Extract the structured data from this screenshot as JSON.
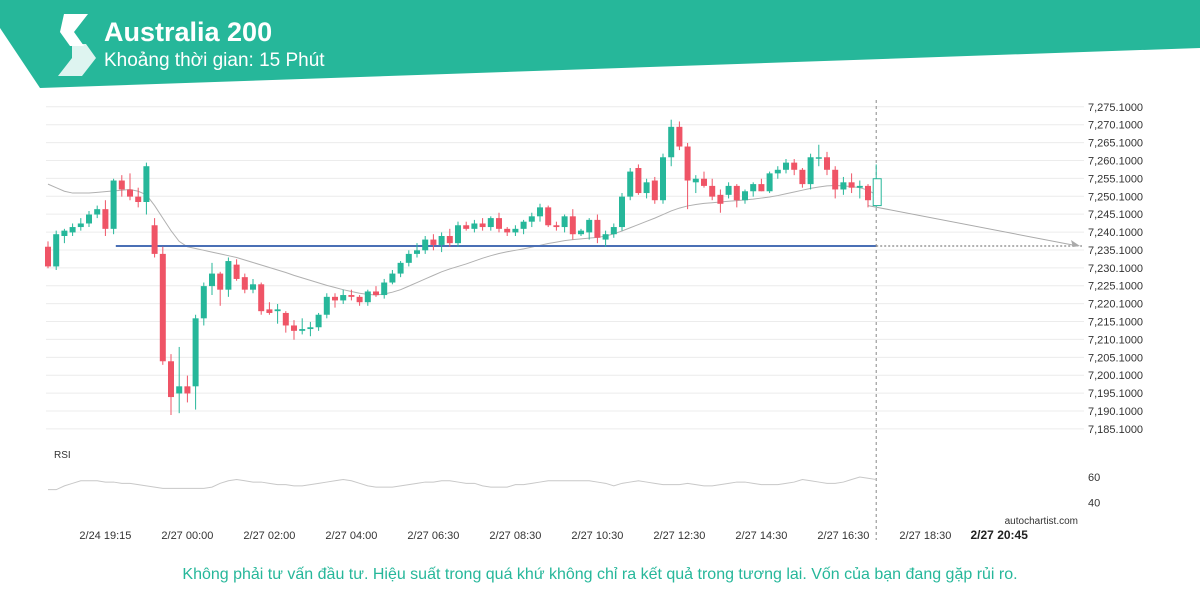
{
  "header": {
    "title": "Australia 200",
    "subtitle": "Khoảng thời gian: 15 Phút",
    "color": "#26b79a"
  },
  "footer": {
    "disclaimer": "Không phải tư vấn đầu tư. Hiệu suất trong quá khứ không chỉ ra kết quả trong tương lai. Vốn của bạn đang gặp rủi ro.",
    "watermark": "autochartist.com"
  },
  "colors": {
    "up": "#26b79a",
    "down": "#ef5466",
    "level_line": "#4a6fb5",
    "ma_line": "#b0b0b0",
    "rsi_line": "#c8c8c8",
    "grid": "#ececec"
  },
  "chart_data": {
    "type": "candlestick",
    "ylim": [
      7182,
      7277
    ],
    "y_ticks": [
      "7,185.1000",
      "7,190.1000",
      "7,195.1000",
      "7,200.1000",
      "7,205.1000",
      "7,210.1000",
      "7,215.1000",
      "7,220.1000",
      "7,225.1000",
      "7,230.1000",
      "7,235.1000",
      "7,240.1000",
      "7,245.1000",
      "7,250.1000",
      "7,255.1000",
      "7,260.1000",
      "7,265.1000",
      "7,270.1000",
      "7,275.1000"
    ],
    "x_ticks": [
      {
        "label": "2/24 19:15",
        "i": 7
      },
      {
        "label": "2/27 00:00",
        "i": 17
      },
      {
        "label": "2/27 02:00",
        "i": 27
      },
      {
        "label": "2/27 04:00",
        "i": 37
      },
      {
        "label": "2/27 06:30",
        "i": 47
      },
      {
        "label": "2/27 08:30",
        "i": 57
      },
      {
        "label": "2/27 10:30",
        "i": 67
      },
      {
        "label": "2/27 12:30",
        "i": 77
      },
      {
        "label": "2/27 14:30",
        "i": 87
      },
      {
        "label": "2/27 16:30",
        "i": 97
      },
      {
        "label": "2/27 18:30",
        "i": 107
      },
      {
        "label": "2/27 20:45",
        "i": 116,
        "bold": true
      }
    ],
    "candles": [
      [
        7236.0,
        7237.5,
        7230.0,
        7230.5
      ],
      [
        7230.5,
        7240.5,
        7229.5,
        7239.5
      ],
      [
        7239.0,
        7241.0,
        7237.0,
        7240.5
      ],
      [
        7240.0,
        7242.5,
        7239.0,
        7241.5
      ],
      [
        7241.5,
        7244.0,
        7240.5,
        7242.5
      ],
      [
        7242.5,
        7246.0,
        7241.5,
        7245.0
      ],
      [
        7245.0,
        7247.5,
        7244.0,
        7246.5
      ],
      [
        7246.5,
        7249.0,
        7239.0,
        7241.0
      ],
      [
        7241.0,
        7255.0,
        7239.5,
        7254.5
      ],
      [
        7254.5,
        7256.0,
        7250.0,
        7252.0
      ],
      [
        7252.0,
        7256.5,
        7249.0,
        7250.0
      ],
      [
        7250.0,
        7252.5,
        7247.0,
        7248.5
      ],
      [
        7248.5,
        7259.5,
        7245.0,
        7258.5
      ],
      [
        7242.0,
        7244.0,
        7233.0,
        7234.0
      ],
      [
        7234.0,
        7236.0,
        7203.0,
        7204.0
      ],
      [
        7204.0,
        7206.0,
        7189.0,
        7194.0
      ],
      [
        7195.0,
        7208.0,
        7189.5,
        7197.0
      ],
      [
        7197.0,
        7200.0,
        7192.5,
        7195.0
      ],
      [
        7197.0,
        7217.0,
        7190.5,
        7216.0
      ],
      [
        7216.0,
        7226.0,
        7214.0,
        7225.0
      ],
      [
        7225.0,
        7231.5,
        7222.5,
        7228.5
      ],
      [
        7228.5,
        7229.0,
        7219.5,
        7224.0
      ],
      [
        7224.0,
        7233.0,
        7222.0,
        7232.0
      ],
      [
        7231.0,
        7232.5,
        7226.5,
        7227.0
      ],
      [
        7227.5,
        7228.5,
        7223.0,
        7224.0
      ],
      [
        7224.0,
        7227.0,
        7223.0,
        7225.5
      ],
      [
        7225.5,
        7226.0,
        7217.0,
        7218.0
      ],
      [
        7218.5,
        7220.5,
        7217.0,
        7217.5
      ],
      [
        7218.0,
        7220.0,
        7214.5,
        7218.5
      ],
      [
        7217.5,
        7218.0,
        7212.0,
        7214.0
      ],
      [
        7214.0,
        7215.5,
        7210.0,
        7212.5
      ],
      [
        7212.5,
        7216.0,
        7211.5,
        7213.0
      ],
      [
        7213.0,
        7215.0,
        7211.0,
        7213.5
      ],
      [
        7213.5,
        7217.5,
        7212.5,
        7217.0
      ],
      [
        7217.0,
        7223.0,
        7216.0,
        7222.0
      ],
      [
        7222.0,
        7223.0,
        7219.0,
        7221.0
      ],
      [
        7221.0,
        7224.0,
        7220.0,
        7222.5
      ],
      [
        7222.5,
        7224.0,
        7221.0,
        7222.0
      ],
      [
        7222.0,
        7222.5,
        7219.5,
        7220.5
      ],
      [
        7220.5,
        7224.0,
        7219.5,
        7223.5
      ],
      [
        7223.5,
        7225.0,
        7222.0,
        7222.5
      ],
      [
        7222.5,
        7227.0,
        7221.5,
        7226.0
      ],
      [
        7226.0,
        7229.5,
        7225.5,
        7228.5
      ],
      [
        7228.5,
        7232.0,
        7227.5,
        7231.5
      ],
      [
        7231.5,
        7235.0,
        7230.5,
        7234.0
      ],
      [
        7234.0,
        7237.0,
        7233.0,
        7235.0
      ],
      [
        7235.0,
        7239.0,
        7234.0,
        7238.0
      ],
      [
        7238.0,
        7239.5,
        7235.0,
        7236.5
      ],
      [
        7236.5,
        7240.0,
        7234.5,
        7239.0
      ],
      [
        7239.0,
        7241.0,
        7236.0,
        7237.0
      ],
      [
        7237.0,
        7243.0,
        7236.0,
        7242.0
      ],
      [
        7242.0,
        7243.0,
        7240.5,
        7241.0
      ],
      [
        7241.0,
        7243.5,
        7240.0,
        7242.5
      ],
      [
        7242.5,
        7244.0,
        7240.5,
        7241.5
      ],
      [
        7241.5,
        7244.5,
        7240.5,
        7244.0
      ],
      [
        7244.0,
        7245.5,
        7240.0,
        7241.0
      ],
      [
        7241.0,
        7241.5,
        7239.0,
        7240.0
      ],
      [
        7240.0,
        7242.0,
        7239.0,
        7241.0
      ],
      [
        7241.0,
        7243.5,
        7239.5,
        7243.0
      ],
      [
        7243.0,
        7245.5,
        7241.5,
        7244.5
      ],
      [
        7244.5,
        7248.0,
        7243.0,
        7247.0
      ],
      [
        7247.0,
        7247.5,
        7241.5,
        7242.0
      ],
      [
        7242.0,
        7243.0,
        7240.5,
        7241.5
      ],
      [
        7241.5,
        7245.0,
        7240.0,
        7244.5
      ],
      [
        7244.5,
        7246.5,
        7238.0,
        7239.5
      ],
      [
        7239.5,
        7241.0,
        7239.0,
        7240.5
      ],
      [
        7240.0,
        7244.0,
        7238.0,
        7243.5
      ],
      [
        7243.5,
        7245.0,
        7237.0,
        7238.5
      ],
      [
        7238.0,
        7240.5,
        7236.0,
        7239.5
      ],
      [
        7239.5,
        7242.5,
        7238.5,
        7241.5
      ],
      [
        7241.5,
        7251.0,
        7240.5,
        7250.0
      ],
      [
        7250.0,
        7258.0,
        7249.0,
        7257.0
      ],
      [
        7258.0,
        7259.0,
        7250.5,
        7251.0
      ],
      [
        7251.0,
        7255.0,
        7249.5,
        7254.0
      ],
      [
        7254.5,
        7255.5,
        7248.0,
        7249.0
      ],
      [
        7249.0,
        7262.0,
        7248.0,
        7261.0
      ],
      [
        7261.0,
        7271.5,
        7258.5,
        7269.5
      ],
      [
        7269.5,
        7271.0,
        7263.0,
        7264.0
      ],
      [
        7264.0,
        7265.0,
        7246.5,
        7254.5
      ],
      [
        7254.0,
        7256.0,
        7251.0,
        7255.0
      ],
      [
        7255.0,
        7257.0,
        7252.5,
        7253.0
      ],
      [
        7253.0,
        7255.0,
        7249.0,
        7250.0
      ],
      [
        7250.5,
        7252.0,
        7245.5,
        7248.0
      ],
      [
        7250.5,
        7254.0,
        7249.5,
        7253.0
      ],
      [
        7253.0,
        7253.5,
        7247.0,
        7249.0
      ],
      [
        7249.0,
        7252.0,
        7248.0,
        7251.5
      ],
      [
        7251.5,
        7254.0,
        7250.0,
        7253.5
      ],
      [
        7253.5,
        7255.0,
        7251.5,
        7251.5
      ],
      [
        7251.5,
        7257.0,
        7251.0,
        7256.5
      ],
      [
        7256.5,
        7258.5,
        7255.0,
        7257.5
      ],
      [
        7257.5,
        7260.5,
        7256.5,
        7259.5
      ],
      [
        7259.5,
        7260.5,
        7256.0,
        7257.5
      ],
      [
        7257.5,
        7258.0,
        7252.5,
        7253.5
      ],
      [
        7253.5,
        7262.0,
        7252.0,
        7261.0
      ],
      [
        7261.0,
        7264.5,
        7258.5,
        7261.0
      ],
      [
        7261.0,
        7262.5,
        7256.0,
        7257.5
      ],
      [
        7257.5,
        7258.5,
        7249.5,
        7252.0
      ],
      [
        7252.0,
        7255.5,
        7250.5,
        7254.0
      ],
      [
        7254.0,
        7256.5,
        7251.0,
        7252.5
      ],
      [
        7252.5,
        7254.5,
        7249.5,
        7253.0
      ],
      [
        7253.0,
        7253.5,
        7247.0,
        7249.0
      ],
      [
        7247.5,
        7259.0,
        7247.0,
        7255.0
      ]
    ],
    "moving_average": [
      7253.5,
      7252.5,
      7251.5,
      7251.0,
      7251.0,
      7251.0,
      7251.2,
      7251.4,
      7251.6,
      7251.8,
      7252.0,
      7251.5,
      7250.5,
      7247.5,
      7244.0,
      7240.5,
      7237.5,
      7236.0,
      7235.5,
      7235.0,
      7234.5,
      7234.0,
      7233.5,
      7233.0,
      7232.3,
      7231.6,
      7230.9,
      7230.2,
      7229.5,
      7228.8,
      7228.0,
      7227.3,
      7226.6,
      7225.9,
      7225.2,
      7224.6,
      7224.0,
      7223.5,
      7223.0,
      7222.7,
      7222.5,
      7222.8,
      7223.3,
      7224.0,
      7225.0,
      7226.0,
      7227.0,
      7228.0,
      7229.0,
      7229.8,
      7230.5,
      7231.2,
      7232.0,
      7232.8,
      7233.5,
      7234.1,
      7234.6,
      7235.0,
      7235.4,
      7235.9,
      7236.4,
      7236.9,
      7237.3,
      7237.7,
      7238.0,
      7238.2,
      7238.4,
      7238.6,
      7239.0,
      7239.6,
      7240.4,
      7241.3,
      7242.2,
      7243.1,
      7244.0,
      7245.0,
      7246.0,
      7246.8,
      7247.4,
      7247.8,
      7248.1,
      7248.3,
      7248.5,
      7248.7,
      7248.9,
      7249.1,
      7249.3,
      7249.6,
      7249.9,
      7250.3,
      7250.8,
      7251.3,
      7251.8,
      7252.3,
      7252.7,
      7253.0,
      7253.1,
      7253.0,
      7252.8,
      7252.5,
      7251.8,
      7250.5
    ],
    "support_level": 7236.2,
    "support_start_index": 9,
    "forecast": {
      "from_index": 100,
      "from_value": 7247.5,
      "to_value": 7236.2
    },
    "rsi": {
      "label": "RSI",
      "ticks": [
        60,
        40
      ],
      "ylim": [
        30,
        75
      ],
      "values": [
        50,
        50,
        53,
        55,
        57,
        57,
        57,
        56,
        56,
        55,
        55,
        54,
        53,
        52,
        51,
        51,
        51,
        51,
        51,
        51,
        52,
        55,
        57,
        58,
        57,
        56,
        56,
        55,
        54,
        54,
        53,
        53,
        54,
        55,
        56,
        57,
        58,
        57,
        55,
        53,
        52,
        52,
        52,
        53,
        54,
        55,
        56,
        56,
        57,
        57,
        56,
        55,
        55,
        53,
        52,
        52,
        52,
        54,
        54,
        55,
        56,
        57,
        57,
        57,
        57,
        57,
        57,
        56,
        55,
        53,
        55,
        56,
        57,
        56,
        55,
        54,
        54,
        54,
        55,
        54,
        53,
        53,
        54,
        55,
        56,
        56,
        55,
        54,
        54,
        54,
        55,
        56,
        58,
        57,
        56,
        55,
        55,
        56,
        58,
        60,
        59,
        58
      ]
    }
  }
}
